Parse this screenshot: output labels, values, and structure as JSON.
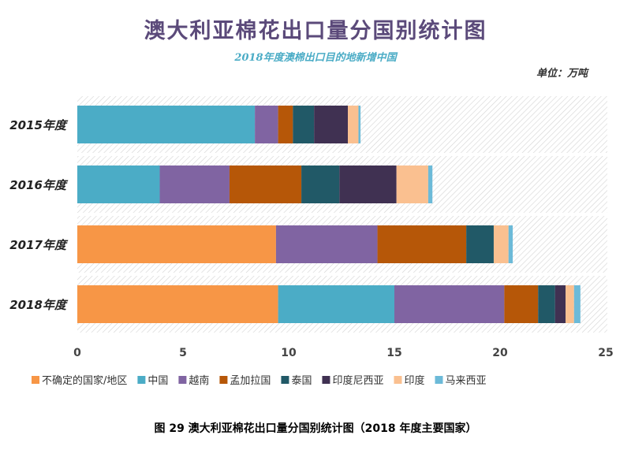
{
  "chart_data": {
    "type": "bar",
    "orientation": "horizontal",
    "stacked": true,
    "title": "澳大利亚棉花出口量分国别统计图",
    "subtitle": "2018年度澳棉出口目的地新增中国",
    "unit_label": "单位：万吨",
    "caption": "图 29    澳大利亚棉花出口量分国别统计图（2018 年度主要国家）",
    "categories": [
      "2015年度",
      "2016年度",
      "2017年度",
      "2018年度"
    ],
    "xlim": [
      0,
      25
    ],
    "xticks": [
      "0",
      "5",
      "10",
      "15",
      "20",
      "25"
    ],
    "grid": false,
    "legend_position": "bottom",
    "series": [
      {
        "name": "不确定的国家/地区",
        "color": "#F79646",
        "values": [
          0,
          0,
          9.4,
          9.5
        ]
      },
      {
        "name": "中国",
        "color": "#4BACC6",
        "values": [
          8.4,
          3.9,
          0,
          5.5
        ]
      },
      {
        "name": "越南",
        "color": "#8064A2",
        "values": [
          1.1,
          3.3,
          4.8,
          5.2
        ]
      },
      {
        "name": "孟加拉国",
        "color": "#B65708",
        "values": [
          0.7,
          3.4,
          4.2,
          1.6
        ]
      },
      {
        "name": "泰国",
        "color": "#215967",
        "values": [
          1.0,
          1.8,
          1.3,
          0.8
        ]
      },
      {
        "name": "印度尼西亚",
        "color": "#403152",
        "values": [
          1.6,
          2.7,
          0,
          0.5
        ]
      },
      {
        "name": "印度",
        "color": "#FAC090",
        "values": [
          0.5,
          1.5,
          0.7,
          0.4
        ]
      },
      {
        "name": "马来西亚",
        "color": "#6CBAD8",
        "values": [
          0.1,
          0.2,
          0.2,
          0.3
        ]
      }
    ]
  }
}
